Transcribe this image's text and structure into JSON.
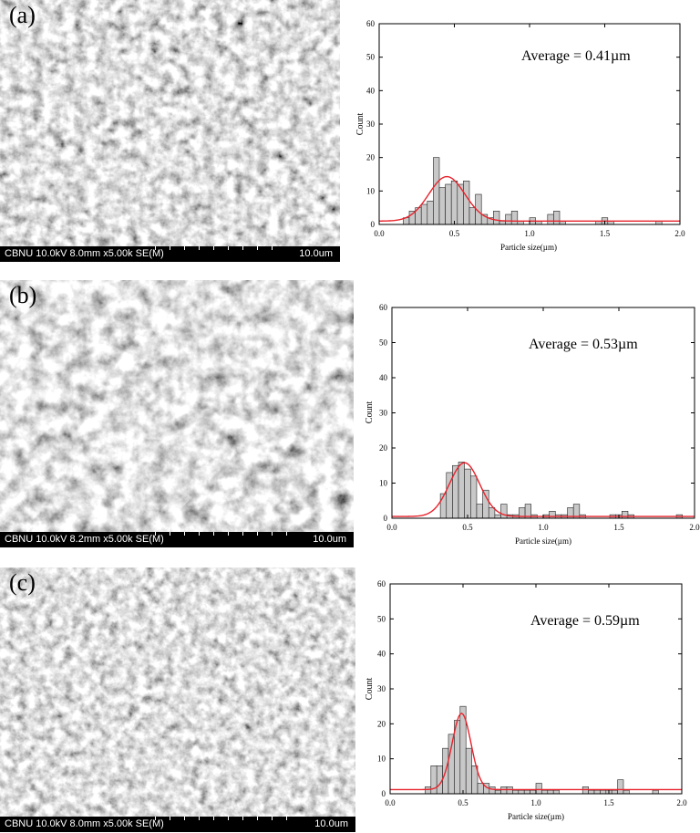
{
  "panels": [
    {
      "label": "(a)",
      "sem_info": "CBNU 10.0kV 8.0mm x5.00k SE(M)",
      "sem_scale": "10.0um",
      "chart_data": {
        "type": "bar",
        "annotation": "Average = 0.41µm",
        "xlabel": "Particle size(µm)",
        "ylabel": "Count",
        "xlim": [
          0,
          2.0
        ],
        "ylim": [
          0,
          60
        ],
        "xticks": [
          "0.0",
          "0.5",
          "1.0",
          "1.5",
          "2.0"
        ],
        "yticks": [
          "0",
          "10",
          "20",
          "30",
          "40",
          "50",
          "60"
        ],
        "bin_width": 0.04,
        "bin_centers": [
          0.18,
          0.22,
          0.26,
          0.3,
          0.34,
          0.38,
          0.42,
          0.46,
          0.5,
          0.54,
          0.58,
          0.62,
          0.66,
          0.7,
          0.74,
          0.78,
          0.82,
          0.86,
          0.9,
          0.94,
          0.98,
          1.02,
          1.06,
          1.1,
          1.14,
          1.18,
          1.22,
          1.26,
          1.3,
          1.34,
          1.38,
          1.42,
          1.46,
          1.5,
          1.54,
          1.58,
          1.62,
          1.66,
          1.7,
          1.74,
          1.78,
          1.82,
          1.86,
          1.9
        ],
        "counts": [
          2,
          4,
          5,
          6,
          7,
          20,
          11,
          12,
          13,
          12,
          13,
          5,
          9,
          3,
          2,
          4,
          1,
          3,
          4,
          1,
          0,
          2,
          1,
          0,
          3,
          4,
          1,
          0,
          0,
          0,
          0,
          0,
          1,
          2,
          1,
          0,
          0,
          0,
          0,
          0,
          0,
          0,
          1,
          0
        ],
        "fit": {
          "x0": 0.45,
          "sigma": 0.12,
          "peak": 14.3,
          "baseline": 1.0,
          "color": "#e8222b"
        }
      }
    },
    {
      "label": "(b)",
      "sem_info": "CBNU 10.0kV 8.2mm x5.00k SE(M)",
      "sem_scale": "10.0um",
      "chart_data": {
        "type": "bar",
        "annotation": "Average = 0.53µm",
        "xlabel": "Particle size(µm)",
        "ylabel": "Count",
        "xlim": [
          0,
          2.0
        ],
        "ylim": [
          0,
          60
        ],
        "xticks": [
          "0.0",
          "0.5",
          "1.0",
          "1.5",
          "2.0"
        ],
        "yticks": [
          "0",
          "10",
          "20",
          "30",
          "40",
          "50",
          "60"
        ],
        "bin_width": 0.04,
        "bin_centers": [
          0.34,
          0.38,
          0.42,
          0.46,
          0.5,
          0.54,
          0.58,
          0.62,
          0.66,
          0.7,
          0.74,
          0.78,
          0.82,
          0.86,
          0.9,
          0.94,
          0.98,
          1.02,
          1.06,
          1.1,
          1.14,
          1.18,
          1.22,
          1.26,
          1.3,
          1.34,
          1.38,
          1.42,
          1.46,
          1.5,
          1.54,
          1.58,
          1.62,
          1.66,
          1.7,
          1.74,
          1.78,
          1.82,
          1.86,
          1.9
        ],
        "counts": [
          7,
          13,
          15,
          16,
          14,
          12,
          4,
          8,
          3,
          1,
          4,
          1,
          1,
          3,
          4,
          1,
          0,
          1,
          2,
          1,
          1,
          3,
          4,
          1,
          0,
          0,
          0,
          0,
          1,
          1,
          2,
          1,
          0,
          0,
          0,
          0,
          0,
          0,
          0,
          1
        ],
        "fit": {
          "x0": 0.48,
          "sigma": 0.1,
          "peak": 15.8,
          "baseline": 0.5,
          "color": "#e8222b"
        }
      }
    },
    {
      "label": "(c)",
      "sem_info": "CBNU 10.0kV 8.0mm x5.00k SE(M)",
      "sem_scale": "10.0um",
      "chart_data": {
        "type": "bar",
        "annotation": "Average = 0.59µm",
        "xlabel": "Particle size(µm)",
        "ylabel": "Count",
        "xlim": [
          0,
          2.0
        ],
        "ylim": [
          0,
          60
        ],
        "xticks": [
          "0.0",
          "0.5",
          "1.0",
          "1.5",
          "2.0"
        ],
        "yticks": [
          "0",
          "10",
          "20",
          "30",
          "40",
          "50",
          "60"
        ],
        "bin_width": 0.04,
        "bin_centers": [
          0.26,
          0.3,
          0.34,
          0.38,
          0.42,
          0.46,
          0.5,
          0.54,
          0.58,
          0.62,
          0.66,
          0.7,
          0.74,
          0.78,
          0.82,
          0.86,
          0.9,
          0.94,
          0.98,
          1.02,
          1.06,
          1.1,
          1.14,
          1.18,
          1.22,
          1.26,
          1.3,
          1.34,
          1.38,
          1.42,
          1.46,
          1.5,
          1.54,
          1.58,
          1.62,
          1.66,
          1.7,
          1.74,
          1.78,
          1.82
        ],
        "counts": [
          2,
          8,
          8,
          13,
          17,
          21,
          25,
          13,
          8,
          3,
          3,
          2,
          1,
          2,
          2,
          1,
          1,
          1,
          1,
          3,
          1,
          1,
          1,
          0,
          0,
          0,
          0,
          2,
          1,
          1,
          1,
          1,
          1,
          4,
          1,
          0,
          0,
          0,
          0,
          1
        ],
        "fit": {
          "x0": 0.49,
          "sigma": 0.065,
          "peak": 23.0,
          "baseline": 1.2,
          "color": "#e8222b"
        }
      }
    }
  ]
}
